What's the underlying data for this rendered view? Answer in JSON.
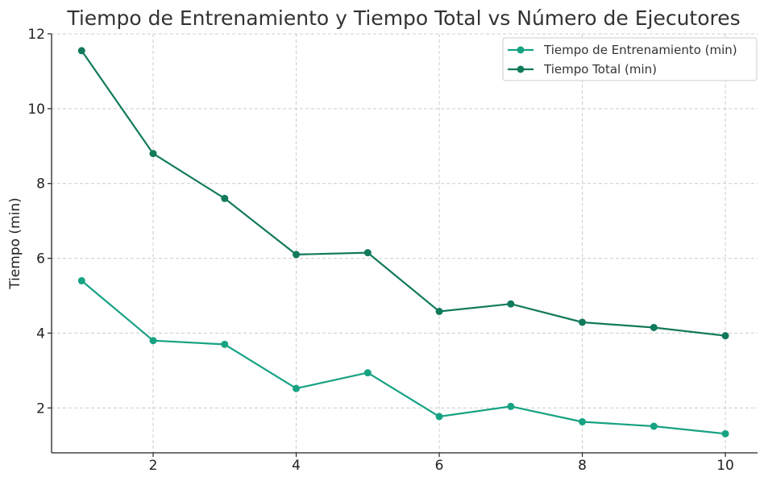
{
  "chart_data": {
    "type": "line",
    "title": "Tiempo de Entrenamiento y Tiempo Total vs Número de Ejecutores",
    "ylabel": "Tiempo (min)",
    "xlabel": "",
    "x": [
      1,
      2,
      3,
      4,
      5,
      6,
      7,
      8,
      9,
      10
    ],
    "x_ticks": [
      2,
      4,
      6,
      8,
      10
    ],
    "y_ticks": [
      2,
      4,
      6,
      8,
      10,
      12
    ],
    "xlim": [
      0.58,
      10.45
    ],
    "ylim": [
      0.8,
      12.0
    ],
    "grid": true,
    "legend_position": "top-right",
    "series": [
      {
        "name": "Tiempo de Entrenamiento (min)",
        "color": "#17a283",
        "values": [
          5.4,
          3.8,
          3.7,
          2.52,
          2.94,
          1.77,
          2.04,
          1.63,
          1.51,
          1.31
        ]
      },
      {
        "name": "Tiempo Total (min)",
        "color": "#127a5c",
        "values": [
          11.55,
          8.8,
          7.6,
          6.1,
          6.15,
          4.58,
          4.78,
          4.29,
          4.15,
          3.93
        ]
      }
    ]
  }
}
